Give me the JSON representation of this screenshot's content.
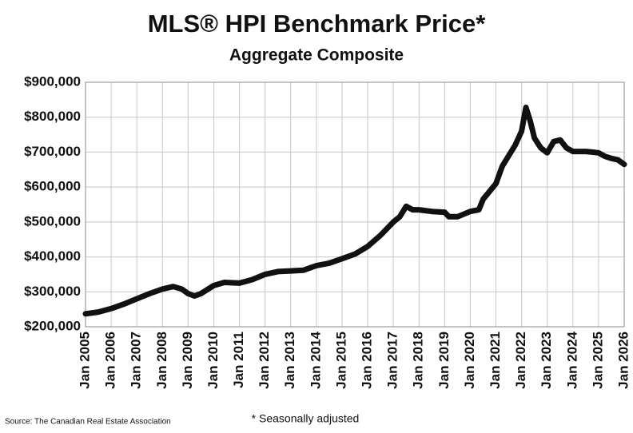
{
  "chart_data": {
    "type": "line",
    "title": "MLS® HPI Benchmark Price*",
    "subtitle": "Aggregate Composite",
    "source": "Source: The Canadian Real Estate Association",
    "footnote": "* Seasonally adjusted",
    "grid": true,
    "x": [
      "2005-01",
      "2005-07",
      "2006-01",
      "2006-07",
      "2007-01",
      "2007-07",
      "2008-01",
      "2008-06",
      "2008-10",
      "2009-01",
      "2009-04",
      "2009-07",
      "2010-01",
      "2010-06",
      "2011-01",
      "2011-07",
      "2012-01",
      "2012-07",
      "2013-01",
      "2013-07",
      "2014-01",
      "2014-07",
      "2015-01",
      "2015-07",
      "2016-01",
      "2016-07",
      "2017-01",
      "2017-04",
      "2017-07",
      "2017-10",
      "2018-01",
      "2018-07",
      "2019-01",
      "2019-03",
      "2019-07",
      "2020-01",
      "2020-05",
      "2020-07",
      "2021-01",
      "2021-04",
      "2021-10",
      "2022-01",
      "2022-03",
      "2022-05",
      "2022-07",
      "2022-10",
      "2023-01",
      "2023-04",
      "2023-07",
      "2023-10",
      "2024-01",
      "2024-04",
      "2024-07",
      "2024-10",
      "2025-01",
      "2025-04",
      "2025-07",
      "2025-10",
      "2026-01"
    ],
    "series": [
      {
        "name": "Aggregate Composite",
        "color": "#111111",
        "values": [
          237000,
          242000,
          252000,
          265000,
          280000,
          295000,
          308000,
          315000,
          308000,
          295000,
          288000,
          295000,
          318000,
          327000,
          325000,
          335000,
          350000,
          358000,
          360000,
          362000,
          375000,
          382000,
          395000,
          408000,
          430000,
          462000,
          500000,
          515000,
          545000,
          535000,
          535000,
          530000,
          528000,
          515000,
          515000,
          530000,
          535000,
          565000,
          610000,
          660000,
          720000,
          760000,
          828000,
          790000,
          740000,
          712000,
          698000,
          730000,
          735000,
          712000,
          702000,
          702000,
          702000,
          700000,
          698000,
          688000,
          682000,
          678000,
          665000
        ]
      }
    ],
    "xlim": [
      "2005-01",
      "2026-01"
    ],
    "xticks": [
      {
        "value": "2005-01",
        "label": "Jan 2005"
      },
      {
        "value": "2006-01",
        "label": "Jan 2006"
      },
      {
        "value": "2007-01",
        "label": "Jan 2007"
      },
      {
        "value": "2008-01",
        "label": "Jan 2008"
      },
      {
        "value": "2009-01",
        "label": "Jan 2009"
      },
      {
        "value": "2010-01",
        "label": "Jan 2010"
      },
      {
        "value": "2011-01",
        "label": "Jan 2011"
      },
      {
        "value": "2012-01",
        "label": "Jan 2012"
      },
      {
        "value": "2013-01",
        "label": "Jan 2013"
      },
      {
        "value": "2014-01",
        "label": "Jan 2014"
      },
      {
        "value": "2015-01",
        "label": "Jan 2015"
      },
      {
        "value": "2016-01",
        "label": "Jan 2016"
      },
      {
        "value": "2017-01",
        "label": "Jan 2017"
      },
      {
        "value": "2018-01",
        "label": "Jan 2018"
      },
      {
        "value": "2019-01",
        "label": "Jan 2019"
      },
      {
        "value": "2020-01",
        "label": "Jan 2020"
      },
      {
        "value": "2021-01",
        "label": "Jan 2021"
      },
      {
        "value": "2022-01",
        "label": "Jan 2022"
      },
      {
        "value": "2023-01",
        "label": "Jan 2023"
      },
      {
        "value": "2024-01",
        "label": "Jan 2024"
      },
      {
        "value": "2025-01",
        "label": "Jan 2025"
      },
      {
        "value": "2026-01",
        "label": "Jan 2026"
      }
    ],
    "ylim": [
      200000,
      900000
    ],
    "yticks": [
      {
        "value": 200000,
        "label": "$200,000"
      },
      {
        "value": 300000,
        "label": "$300,000"
      },
      {
        "value": 400000,
        "label": "$400,000"
      },
      {
        "value": 500000,
        "label": "$500,000"
      },
      {
        "value": 600000,
        "label": "$600,000"
      },
      {
        "value": 700000,
        "label": "$700,000"
      },
      {
        "value": 800000,
        "label": "$800,000"
      },
      {
        "value": 900000,
        "label": "$900,000"
      }
    ]
  }
}
